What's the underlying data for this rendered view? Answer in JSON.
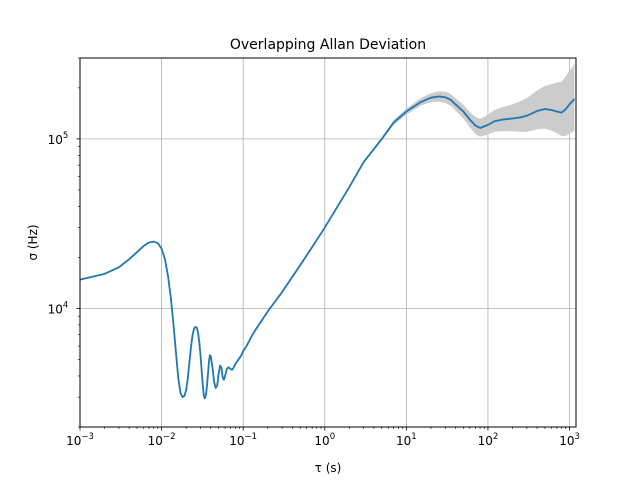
{
  "chart_data": {
    "type": "line",
    "title": "Overlapping Allan Deviation",
    "xlabel": "τ (s)",
    "ylabel": "σ (Hz)",
    "x_scale": "log",
    "y_scale": "log",
    "xlim": [
      0.001,
      1200
    ],
    "ylim": [
      2000,
      300000
    ],
    "grid": true,
    "x_ticks": [
      {
        "value": 0.001,
        "base": "10",
        "exp": "−3"
      },
      {
        "value": 0.01,
        "base": "10",
        "exp": "−2"
      },
      {
        "value": 0.1,
        "base": "10",
        "exp": "−1"
      },
      {
        "value": 1,
        "base": "10",
        "exp": "0"
      },
      {
        "value": 10,
        "base": "10",
        "exp": "1"
      },
      {
        "value": 100,
        "base": "10",
        "exp": "2"
      },
      {
        "value": 1000,
        "base": "10",
        "exp": "3"
      }
    ],
    "y_ticks": [
      {
        "value": 10000,
        "base": "10",
        "exp": "4"
      },
      {
        "value": 100000,
        "base": "10",
        "exp": "5"
      }
    ],
    "colors": {
      "line": "#1f77b4",
      "band": "#cccccc",
      "grid": "#b0b0b0"
    },
    "series": [
      {
        "x": [
          0.001,
          0.002,
          0.003,
          0.004,
          0.005,
          0.006,
          0.007,
          0.008,
          0.009,
          0.01,
          0.011,
          0.012,
          0.013,
          0.014,
          0.015,
          0.016,
          0.017,
          0.018,
          0.019,
          0.02,
          0.021,
          0.022,
          0.023,
          0.024,
          0.025,
          0.026,
          0.027,
          0.028,
          0.029,
          0.03,
          0.031,
          0.032,
          0.033,
          0.034,
          0.035,
          0.036,
          0.037,
          0.038,
          0.039,
          0.04,
          0.042,
          0.044,
          0.046,
          0.048,
          0.05,
          0.052,
          0.054,
          0.056,
          0.058,
          0.06,
          0.063,
          0.066,
          0.07,
          0.073,
          0.076,
          0.08,
          0.085,
          0.09,
          0.095,
          0.1,
          0.11,
          0.12,
          0.13,
          0.15,
          0.2,
          0.3,
          0.5,
          0.7,
          1,
          2,
          3,
          5,
          7,
          10,
          15,
          20,
          25,
          30,
          35,
          40,
          50,
          60,
          70,
          80,
          100,
          120,
          150,
          200,
          250,
          300,
          400,
          500,
          600,
          700,
          800,
          900,
          1000,
          1100,
          1150
        ],
        "y": [
          14800,
          16000,
          17500,
          19500,
          21500,
          23300,
          24500,
          24800,
          24300,
          22500,
          19500,
          15500,
          11500,
          8000,
          5500,
          3900,
          3200,
          3000,
          3050,
          3300,
          3900,
          4900,
          6000,
          7000,
          7600,
          7800,
          7700,
          7200,
          6300,
          5300,
          4300,
          3500,
          3050,
          2950,
          3100,
          3500,
          4100,
          4800,
          5300,
          5250,
          4500,
          3700,
          3400,
          3500,
          4100,
          4600,
          4500,
          3950,
          3800,
          4000,
          4400,
          4500,
          4400,
          4350,
          4450,
          4700,
          4900,
          5100,
          5300,
          5600,
          6000,
          6500,
          7000,
          7800,
          9600,
          12500,
          18000,
          23000,
          30000,
          52000,
          73000,
          100000,
          125000,
          145000,
          165000,
          175000,
          178000,
          176000,
          170000,
          160000,
          145000,
          130000,
          120000,
          116000,
          121000,
          127000,
          130000,
          132000,
          134000,
          137000,
          146000,
          150000,
          148000,
          145000,
          143000,
          150000,
          160000,
          168000,
          172000
        ],
        "lower": [
          14800,
          16000,
          17500,
          19500,
          21500,
          23300,
          24500,
          24800,
          24300,
          22500,
          19500,
          15500,
          11500,
          8000,
          5500,
          3900,
          3200,
          3000,
          3050,
          3300,
          3900,
          4900,
          6000,
          7000,
          7600,
          7800,
          7700,
          7200,
          6300,
          5300,
          4300,
          3500,
          3050,
          2950,
          3100,
          3500,
          4100,
          4800,
          5300,
          5250,
          4500,
          3700,
          3400,
          3500,
          4100,
          4600,
          4500,
          3950,
          3800,
          4000,
          4400,
          4500,
          4400,
          4350,
          4450,
          4700,
          4900,
          5100,
          5300,
          5600,
          6000,
          6500,
          7000,
          7800,
          9600,
          12500,
          18000,
          23000,
          29800,
          51500,
          72000,
          98000,
          121000,
          139000,
          157000,
          165000,
          166000,
          163000,
          157000,
          147000,
          132000,
          117000,
          107000,
          103000,
          106000,
          110000,
          111000,
          111000,
          110000,
          110000,
          114000,
          115000,
          112000,
          108000,
          104000,
          104000,
          108000,
          110000,
          112000
        ],
        "upper": [
          14800,
          16000,
          17500,
          19500,
          21500,
          23300,
          24500,
          24800,
          24300,
          22500,
          19500,
          15500,
          11500,
          8000,
          5500,
          3900,
          3200,
          3000,
          3050,
          3300,
          3900,
          4900,
          6000,
          7000,
          7600,
          7800,
          7700,
          7200,
          6300,
          5300,
          4300,
          3500,
          3050,
          2950,
          3100,
          3500,
          4100,
          4800,
          5300,
          5250,
          4500,
          3700,
          3400,
          3500,
          4100,
          4600,
          4500,
          3950,
          3800,
          4000,
          4400,
          4500,
          4400,
          4350,
          4450,
          4700,
          4900,
          5100,
          5300,
          5600,
          6000,
          6500,
          7000,
          7800,
          9600,
          12500,
          18000,
          23000,
          30200,
          52500,
          74000,
          102000,
          129000,
          151000,
          174000,
          186000,
          191000,
          190000,
          184000,
          174000,
          159000,
          144000,
          135000,
          131000,
          139000,
          148000,
          154000,
          160000,
          167000,
          174000,
          193000,
          205000,
          210000,
          215000,
          218000,
          234000,
          252000,
          268000,
          280000
        ]
      }
    ]
  }
}
